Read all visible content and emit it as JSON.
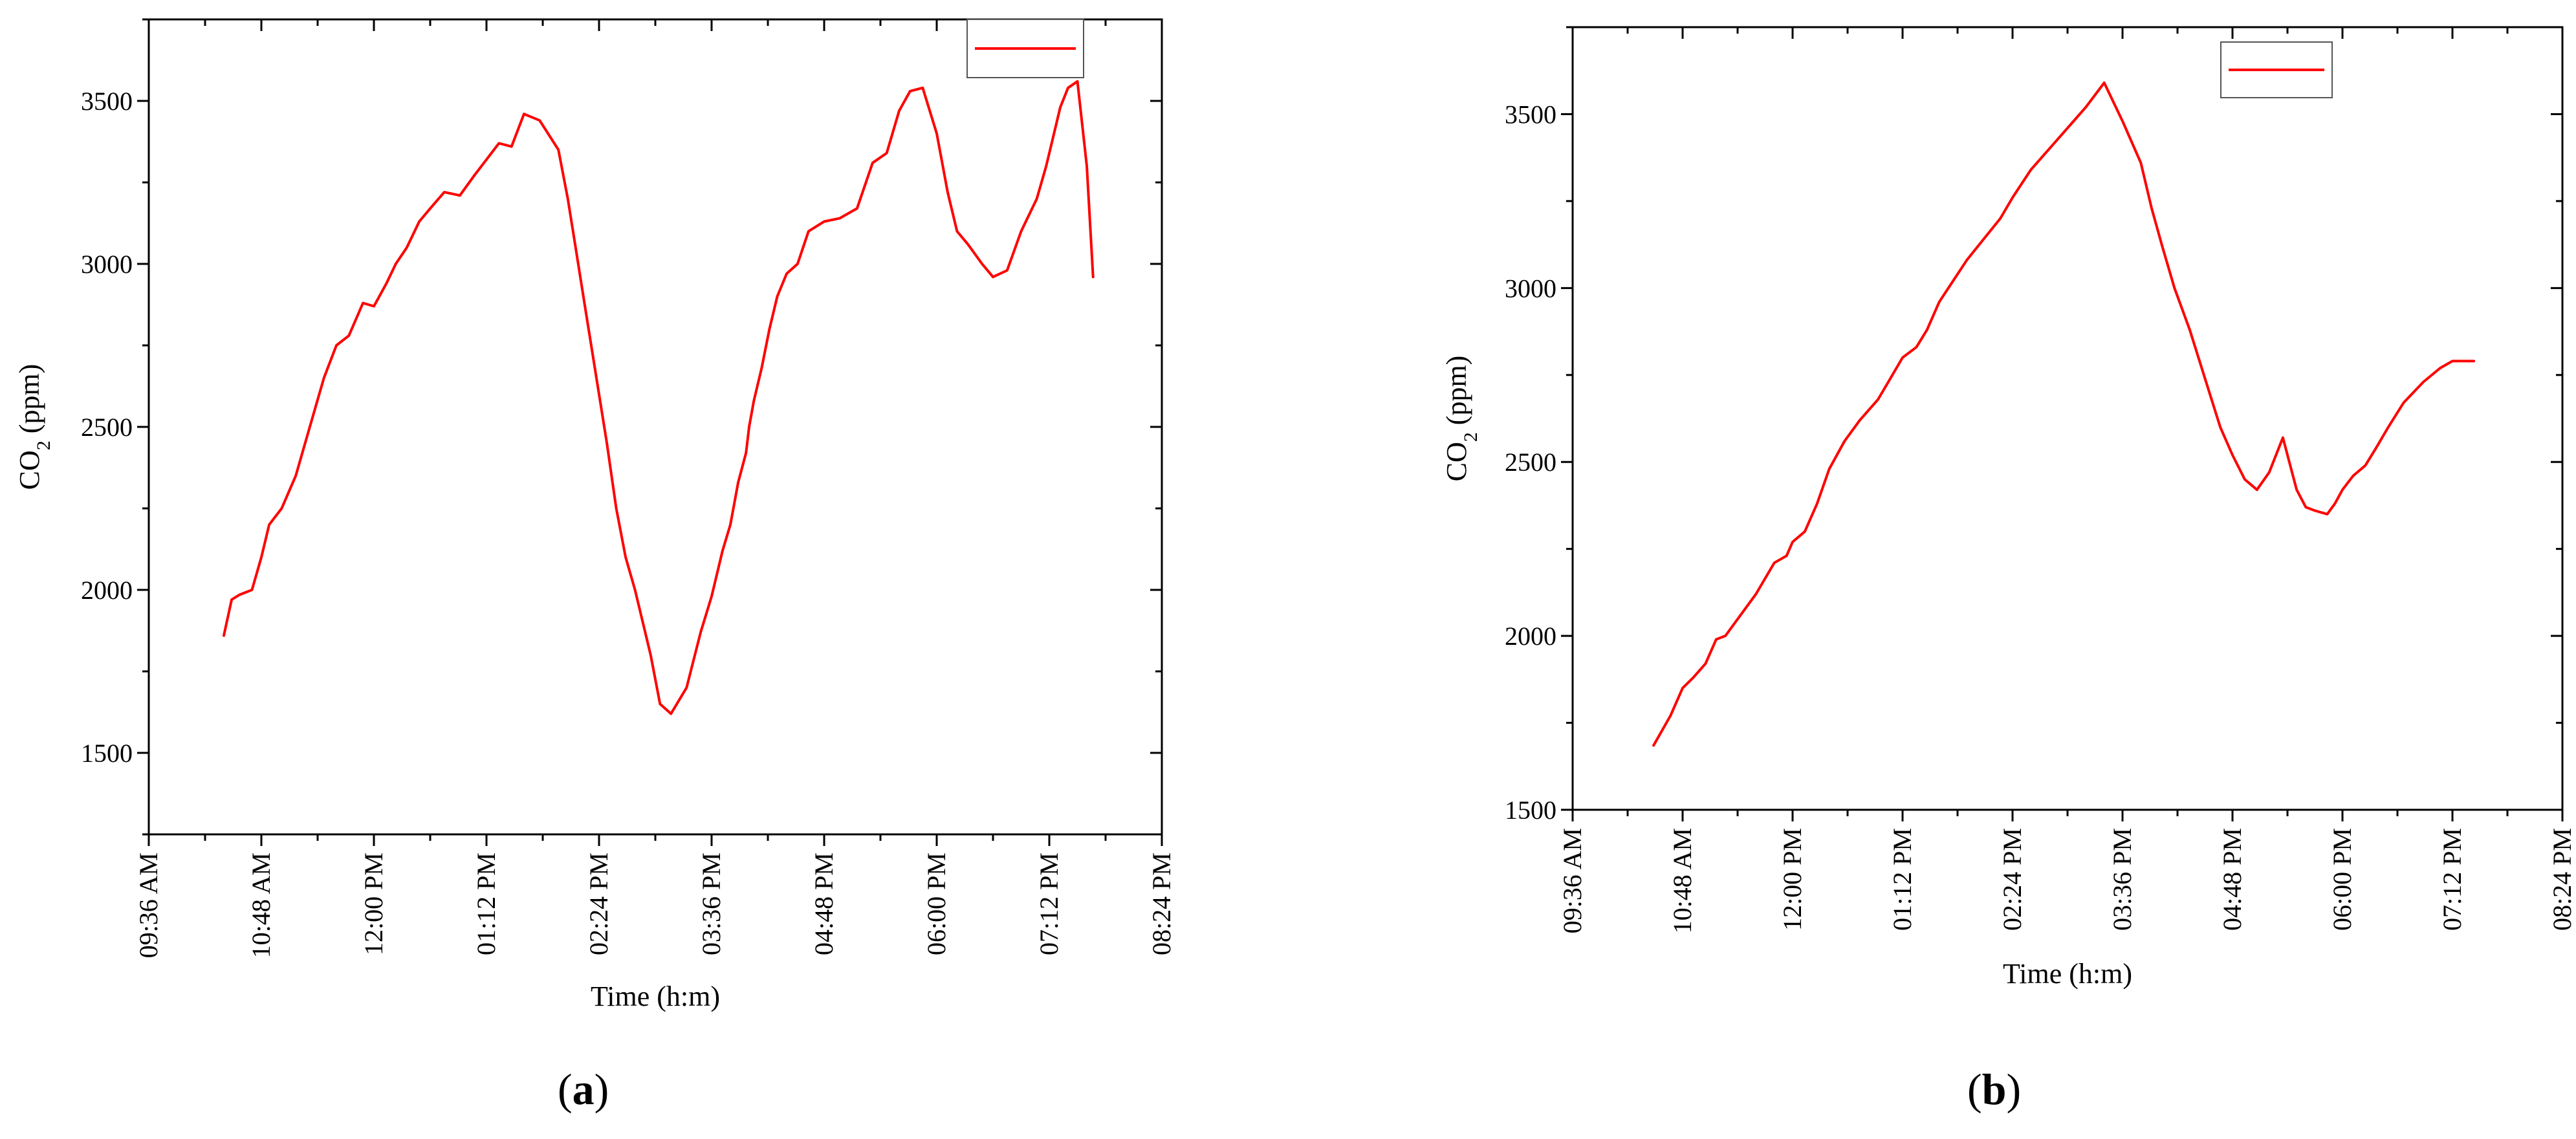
{
  "colors": {
    "series": "#ff0000",
    "axis": "#000000"
  },
  "panels": [
    {
      "label_open": "(",
      "label_letter": "a",
      "label_close": ")"
    },
    {
      "label_open": "(",
      "label_letter": "b",
      "label_close": ")"
    }
  ],
  "chart_data": [
    {
      "type": "line",
      "title": "",
      "xlabel": "Time (h:m)",
      "ylabel_main": "CO",
      "ylabel_sub": "2",
      "ylabel_tail": " (ppm)",
      "xlim": [
        "09:36 AM",
        "08:24 PM"
      ],
      "ylim": [
        1250,
        3750
      ],
      "x_ticks": [
        "09:36 AM",
        "10:48 AM",
        "12:00 PM",
        "01:12 PM",
        "02:24 PM",
        "03:36 PM",
        "04:48 PM",
        "06:00 PM",
        "07:12 PM",
        "08:24 PM"
      ],
      "y_ticks": [
        1500,
        2000,
        2500,
        3000,
        3500
      ],
      "grid": false,
      "legend": {
        "placement": "top-right",
        "entries": [
          ""
        ]
      },
      "series": [
        {
          "x": [
            "10:24 AM",
            "10:29 AM",
            "10:34 AM",
            "10:42 AM",
            "10:48 AM",
            "10:53 AM",
            "11:01 AM",
            "11:10 AM",
            "11:19 AM",
            "11:28 AM",
            "11:36 AM",
            "11:44 AM",
            "11:53 AM",
            "12:00 PM",
            "12:08 PM",
            "12:14 PM",
            "12:21 PM",
            "12:29 PM",
            "12:36 PM",
            "12:45 PM",
            "12:55 PM",
            "01:04 PM",
            "01:12 PM",
            "01:20 PM",
            "01:28 PM",
            "01:36 PM",
            "01:46 PM",
            "01:58 PM",
            "02:04 PM",
            "02:09 PM",
            "02:14 PM",
            "02:19 PM",
            "02:24 PM",
            "02:29 PM",
            "02:35 PM",
            "02:41 PM",
            "02:47 PM",
            "02:52 PM",
            "02:57 PM",
            "03:03 PM",
            "03:10 PM",
            "03:20 PM",
            "03:29 PM",
            "03:36 PM",
            "03:43 PM",
            "03:48 PM",
            "03:53 PM",
            "03:58 PM",
            "04:00 PM",
            "04:03 PM",
            "04:08 PM",
            "04:13 PM",
            "04:18 PM",
            "04:24 PM",
            "04:31 PM",
            "04:38 PM",
            "04:48 PM",
            "04:58 PM",
            "05:09 PM",
            "05:19 PM",
            "05:28 PM",
            "05:36 PM",
            "05:43 PM",
            "05:51 PM",
            "06:00 PM",
            "06:07 PM",
            "06:13 PM",
            "06:20 PM",
            "06:29 PM",
            "06:36 PM",
            "06:45 PM",
            "06:54 PM",
            "07:04 PM",
            "07:10 PM",
            "07:15 PM",
            "07:19 PM",
            "07:24 PM",
            "07:30 PM",
            "07:36 PM",
            "07:40 PM"
          ],
          "values": [
            1860,
            1970,
            1985,
            2000,
            2100,
            2200,
            2250,
            2350,
            2500,
            2650,
            2750,
            2780,
            2880,
            2870,
            2940,
            3000,
            3050,
            3130,
            3170,
            3220,
            3210,
            3270,
            3320,
            3370,
            3360,
            3460,
            3440,
            3350,
            3200,
            3050,
            2900,
            2750,
            2600,
            2450,
            2250,
            2100,
            2000,
            1900,
            1800,
            1650,
            1620,
            1700,
            1870,
            1980,
            2120,
            2200,
            2330,
            2420,
            2500,
            2580,
            2680,
            2800,
            2900,
            2970,
            3000,
            3100,
            3130,
            3140,
            3170,
            3310,
            3340,
            3470,
            3530,
            3540,
            3400,
            3220,
            3100,
            3060,
            3000,
            2960,
            2980,
            3100,
            3200,
            3300,
            3400,
            3480,
            3540,
            3560,
            3300,
            2960
          ]
        }
      ]
    },
    {
      "type": "line",
      "title": "",
      "xlabel": "Time (h:m)",
      "ylabel_main": "CO",
      "ylabel_sub": "2",
      "ylabel_tail": " (ppm)",
      "xlim": [
        "09:36 AM",
        "08:24 PM"
      ],
      "ylim": [
        1500,
        3750
      ],
      "x_ticks": [
        "09:36 AM",
        "10:48 AM",
        "12:00 PM",
        "01:12 PM",
        "02:24 PM",
        "03:36 PM",
        "04:48 PM",
        "06:00 PM",
        "07:12 PM",
        "08:24 PM"
      ],
      "y_ticks": [
        1500,
        2000,
        2500,
        3000,
        3500
      ],
      "grid": false,
      "legend": {
        "placement": "top-right",
        "entries": [
          ""
        ]
      },
      "series": [
        {
          "x": [
            "10:29 AM",
            "10:40 AM",
            "10:48 AM",
            "10:55 AM",
            "11:03 AM",
            "11:10 AM",
            "11:16 AM",
            "11:26 AM",
            "11:36 AM",
            "11:48 AM",
            "11:56 AM",
            "12:00 PM",
            "12:08 PM",
            "12:16 PM",
            "12:24 PM",
            "12:34 PM",
            "12:44 PM",
            "12:56 PM",
            "01:04 PM",
            "01:12 PM",
            "01:21 PM",
            "01:28 PM",
            "01:36 PM",
            "01:45 PM",
            "01:54 PM",
            "02:05 PM",
            "02:16 PM",
            "02:24 PM",
            "02:36 PM",
            "02:48 PM",
            "03:00 PM",
            "03:12 PM",
            "03:24 PM",
            "03:36 PM",
            "03:48 PM",
            "03:55 PM",
            "04:02 PM",
            "04:10 PM",
            "04:20 PM",
            "04:30 PM",
            "04:40 PM",
            "04:48 PM",
            "04:56 PM",
            "05:04 PM",
            "05:12 PM",
            "05:21 PM",
            "05:30 PM",
            "05:36 PM",
            "05:42 PM",
            "05:50 PM",
            "05:55 PM",
            "06:00 PM",
            "06:07 PM",
            "06:15 PM",
            "06:22 PM",
            "06:30 PM",
            "06:40 PM",
            "06:53 PM",
            "07:04 PM",
            "07:12 PM",
            "07:20 PM",
            "07:26 PM"
          ],
          "values": [
            1685,
            1770,
            1850,
            1880,
            1920,
            1990,
            2000,
            2060,
            2120,
            2210,
            2230,
            2270,
            2300,
            2380,
            2480,
            2560,
            2620,
            2680,
            2740,
            2800,
            2830,
            2880,
            2960,
            3020,
            3080,
            3140,
            3200,
            3260,
            3340,
            3400,
            3460,
            3520,
            3590,
            3480,
            3360,
            3230,
            3120,
            3000,
            2880,
            2740,
            2600,
            2520,
            2450,
            2420,
            2470,
            2570,
            2420,
            2370,
            2360,
            2350,
            2380,
            2420,
            2460,
            2490,
            2540,
            2600,
            2670,
            2730,
            2770,
            2790,
            2790,
            2790
          ]
        }
      ]
    }
  ]
}
